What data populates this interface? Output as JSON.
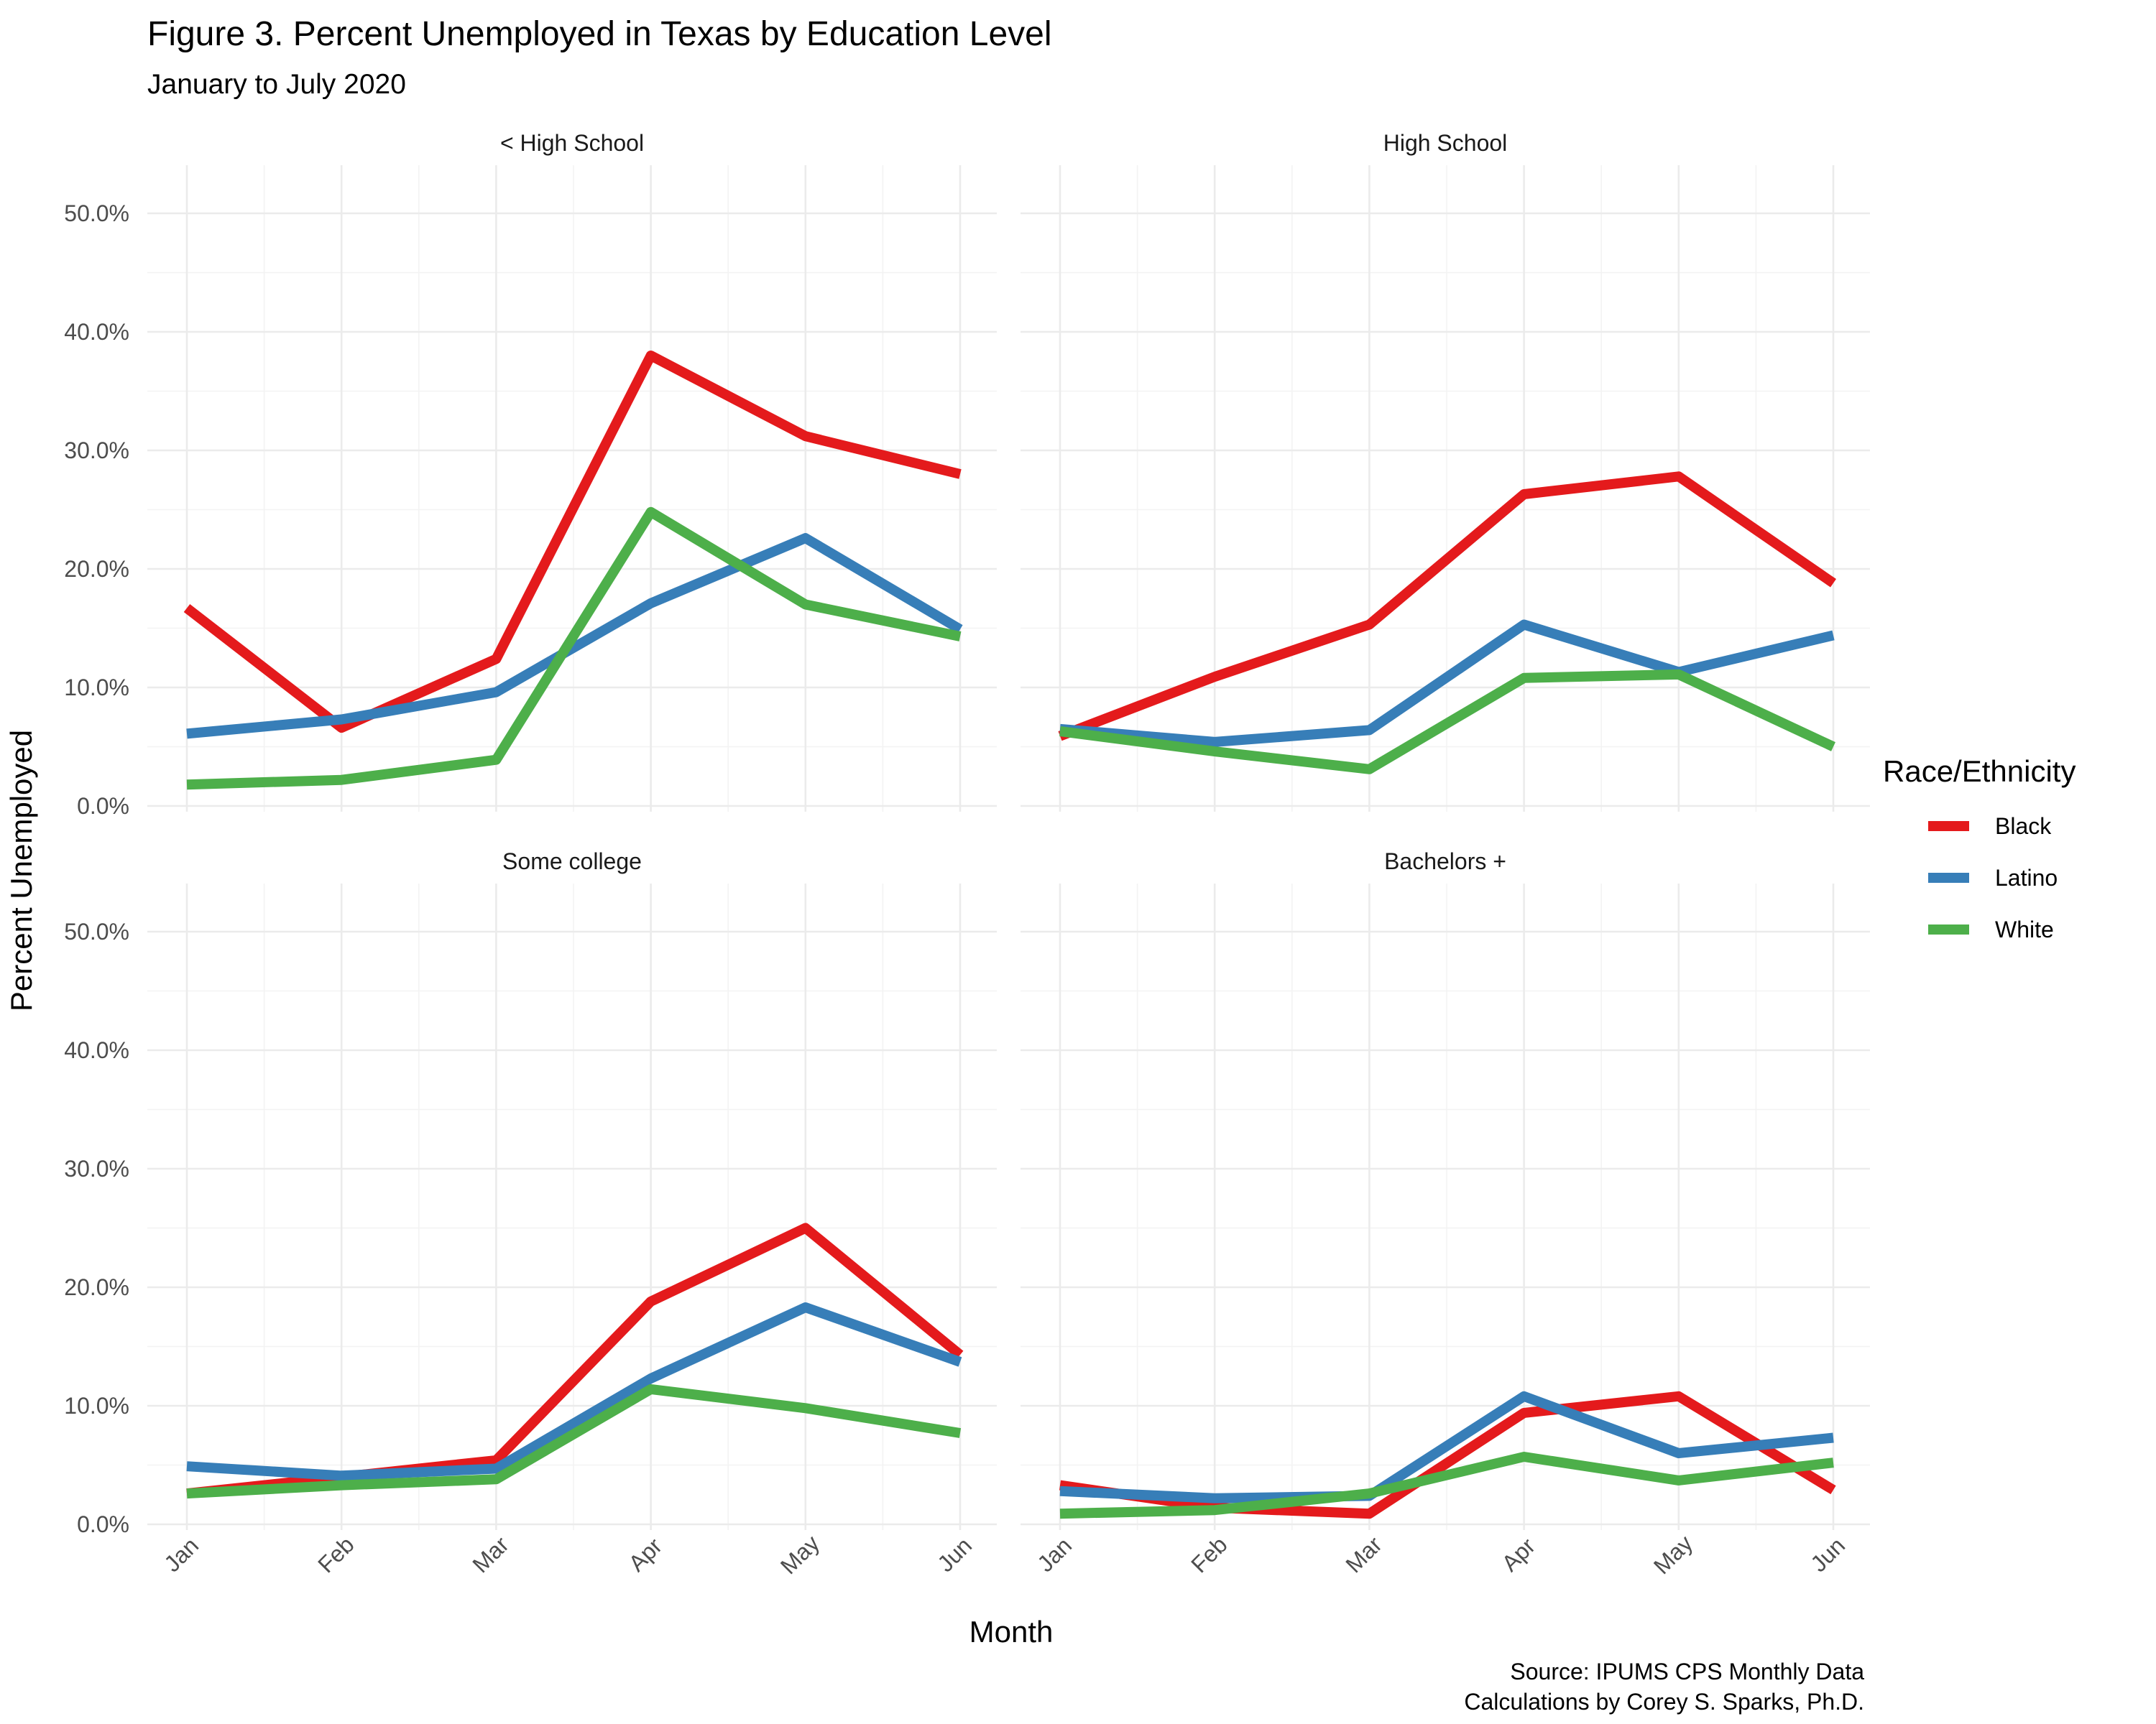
{
  "chart_data": {
    "type": "line",
    "title": "Figure 3. Percent Unemployed in Texas by Education Level",
    "subtitle": "January to July 2020",
    "xlabel": "Month",
    "ylabel": "Percent Unemployed",
    "categories": [
      "Jan",
      "Feb",
      "Mar",
      "Apr",
      "May",
      "Jun"
    ],
    "y_ticks": [
      "0.0%",
      "10.0%",
      "20.0%",
      "30.0%",
      "40.0%",
      "50.0%"
    ],
    "ylim": [
      0,
      50
    ],
    "grid": true,
    "legend": {
      "title": "Race/Ethnicity",
      "placement": "right",
      "entries": [
        {
          "name": "Black",
          "color": "#e41a1c"
        },
        {
          "name": "Latino",
          "color": "#377eb8"
        },
        {
          "name": "White",
          "color": "#4daf4a"
        }
      ]
    },
    "caption": [
      "Source: IPUMS CPS Monthly Data",
      "Calculations by Corey S. Sparks, Ph.D."
    ],
    "panels": [
      {
        "label": "< High School",
        "series": [
          {
            "name": "Black",
            "values": [
              16.7,
              6.6,
              12.4,
              38.0,
              31.2,
              28.0
            ]
          },
          {
            "name": "Latino",
            "values": [
              6.1,
              7.3,
              9.6,
              17.1,
              22.6,
              14.9
            ]
          },
          {
            "name": "White",
            "values": [
              1.8,
              2.2,
              3.9,
              24.8,
              17.0,
              14.3
            ]
          }
        ]
      },
      {
        "label": "High School",
        "series": [
          {
            "name": "Black",
            "values": [
              5.9,
              10.9,
              15.3,
              26.3,
              27.8,
              18.8
            ]
          },
          {
            "name": "Latino",
            "values": [
              6.5,
              5.4,
              6.4,
              15.3,
              11.3,
              14.4
            ]
          },
          {
            "name": "White",
            "values": [
              6.3,
              4.6,
              3.1,
              10.8,
              11.1,
              5.0
            ]
          }
        ]
      },
      {
        "label": "Some college",
        "series": [
          {
            "name": "Black",
            "values": [
              2.6,
              4.0,
              5.4,
              18.8,
              25.0,
              14.3
            ]
          },
          {
            "name": "Latino",
            "values": [
              4.9,
              4.1,
              4.7,
              12.3,
              18.3,
              13.7
            ]
          },
          {
            "name": "White",
            "values": [
              2.6,
              3.3,
              3.8,
              11.4,
              9.8,
              7.7
            ]
          }
        ]
      },
      {
        "label": "Bachelors +",
        "series": [
          {
            "name": "Black",
            "values": [
              3.3,
              1.4,
              0.9,
              9.4,
              10.8,
              2.9
            ]
          },
          {
            "name": "Latino",
            "values": [
              2.8,
              2.2,
              2.4,
              10.8,
              6.0,
              7.3
            ]
          },
          {
            "name": "White",
            "values": [
              0.9,
              1.2,
              2.6,
              5.7,
              3.7,
              5.2
            ]
          }
        ]
      }
    ]
  }
}
